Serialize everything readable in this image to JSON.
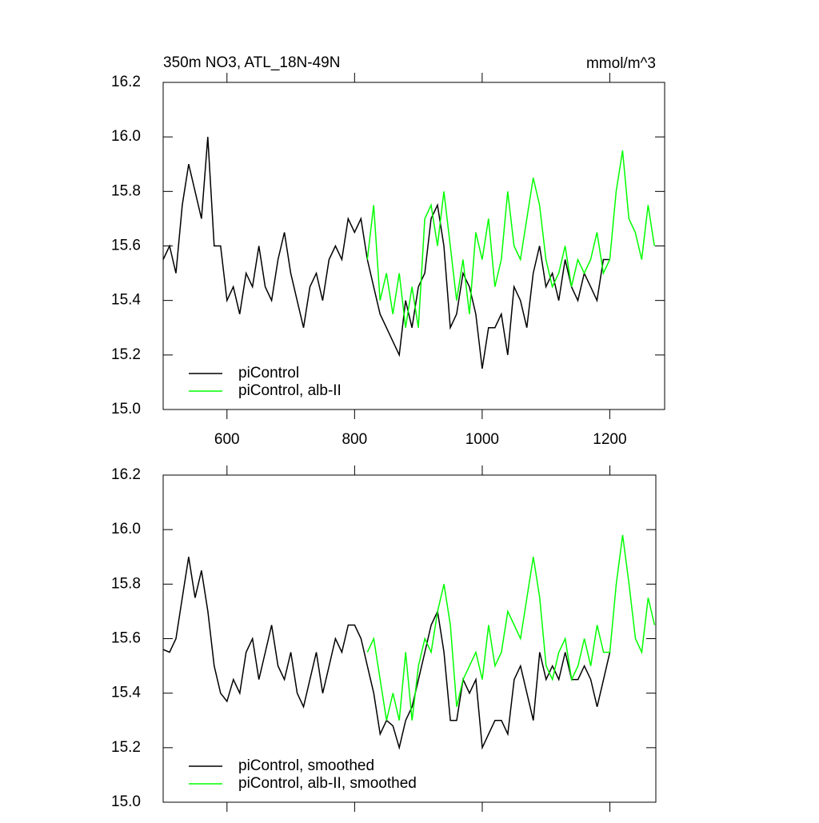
{
  "chart_data": [
    {
      "type": "line",
      "title": "350m NO3, ATL_18N-49N",
      "y_units": "mmol/m^3",
      "xlim": [
        500,
        1286
      ],
      "ylim": [
        15.0,
        16.2
      ],
      "xticks": [
        600,
        800,
        1000,
        1200
      ],
      "yticks": [
        {
          "value": 15.0,
          "label": "15.0"
        },
        {
          "value": 15.2,
          "label": "15.2"
        },
        {
          "value": 15.4,
          "label": "15.4"
        },
        {
          "value": 15.6,
          "label": "15.6"
        },
        {
          "value": 15.8,
          "label": "15.8"
        },
        {
          "value": 16.0,
          "label": "16.0"
        },
        {
          "value": 16.2,
          "label": "16.2"
        }
      ],
      "legend": "lower-left",
      "series": [
        {
          "name": "piControl",
          "color": "#000000",
          "x": [
            500,
            510,
            520,
            530,
            540,
            550,
            560,
            570,
            580,
            590,
            600,
            610,
            620,
            630,
            640,
            650,
            660,
            670,
            680,
            690,
            700,
            710,
            720,
            730,
            740,
            750,
            760,
            770,
            780,
            790,
            800,
            810,
            820,
            830,
            840,
            850,
            860,
            870,
            880,
            890,
            900,
            910,
            920,
            930,
            940,
            950,
            960,
            970,
            980,
            990,
            1000,
            1010,
            1020,
            1030,
            1040,
            1050,
            1060,
            1070,
            1080,
            1090,
            1100,
            1110,
            1120,
            1130,
            1140,
            1150,
            1160,
            1170,
            1180,
            1190,
            1200
          ],
          "values": [
            15.55,
            15.6,
            15.5,
            15.75,
            15.9,
            15.8,
            15.7,
            16.0,
            15.6,
            15.6,
            15.4,
            15.45,
            15.35,
            15.5,
            15.45,
            15.6,
            15.45,
            15.4,
            15.55,
            15.65,
            15.5,
            15.4,
            15.3,
            15.45,
            15.5,
            15.4,
            15.55,
            15.6,
            15.55,
            15.7,
            15.65,
            15.7,
            15.55,
            15.45,
            15.35,
            15.3,
            15.25,
            15.2,
            15.4,
            15.3,
            15.45,
            15.5,
            15.7,
            15.75,
            15.6,
            15.3,
            15.35,
            15.5,
            15.45,
            15.35,
            15.15,
            15.3,
            15.3,
            15.35,
            15.2,
            15.45,
            15.4,
            15.3,
            15.5,
            15.6,
            15.45,
            15.5,
            15.4,
            15.55,
            15.45,
            15.4,
            15.5,
            15.45,
            15.4,
            15.55,
            15.55
          ]
        },
        {
          "name": "piControl, alb-II",
          "color": "#00ff00",
          "x": [
            820,
            830,
            840,
            850,
            860,
            870,
            880,
            890,
            900,
            910,
            920,
            930,
            940,
            950,
            960,
            970,
            980,
            990,
            1000,
            1010,
            1020,
            1030,
            1040,
            1050,
            1060,
            1070,
            1080,
            1090,
            1100,
            1110,
            1120,
            1130,
            1140,
            1150,
            1160,
            1170,
            1180,
            1190,
            1200,
            1210,
            1220,
            1230,
            1240,
            1250,
            1260,
            1270
          ],
          "values": [
            15.55,
            15.75,
            15.4,
            15.5,
            15.35,
            15.5,
            15.3,
            15.45,
            15.3,
            15.7,
            15.75,
            15.6,
            15.8,
            15.6,
            15.4,
            15.55,
            15.35,
            15.65,
            15.55,
            15.7,
            15.45,
            15.55,
            15.8,
            15.6,
            15.55,
            15.7,
            15.85,
            15.75,
            15.55,
            15.45,
            15.5,
            15.6,
            15.45,
            15.55,
            15.5,
            15.55,
            15.65,
            15.5,
            15.55,
            15.8,
            15.95,
            15.7,
            15.65,
            15.55,
            15.75,
            15.6
          ]
        }
      ]
    },
    {
      "type": "line",
      "xlim": [
        500,
        1272
      ],
      "ylim": [
        15.0,
        16.2
      ],
      "yticks": [
        {
          "value": 15.0,
          "label": "15.0"
        },
        {
          "value": 15.2,
          "label": "15.2"
        },
        {
          "value": 15.4,
          "label": "15.4"
        },
        {
          "value": 15.6,
          "label": "15.6"
        },
        {
          "value": 15.8,
          "label": "15.8"
        },
        {
          "value": 16.0,
          "label": "16.0"
        },
        {
          "value": 16.2,
          "label": "16.2"
        }
      ],
      "legend": "lower-left",
      "series": [
        {
          "name": "piControl, smoothed",
          "color": "#000000",
          "x": [
            500,
            510,
            520,
            530,
            540,
            550,
            560,
            570,
            580,
            590,
            600,
            610,
            620,
            630,
            640,
            650,
            660,
            670,
            680,
            690,
            700,
            710,
            720,
            730,
            740,
            750,
            760,
            770,
            780,
            790,
            800,
            810,
            820,
            830,
            840,
            850,
            860,
            870,
            880,
            890,
            900,
            910,
            920,
            930,
            940,
            950,
            960,
            970,
            980,
            990,
            1000,
            1010,
            1020,
            1030,
            1040,
            1050,
            1060,
            1070,
            1080,
            1090,
            1100,
            1110,
            1120,
            1130,
            1140,
            1150,
            1160,
            1170,
            1180,
            1190,
            1200
          ],
          "values": [
            15.56,
            15.55,
            15.6,
            15.75,
            15.9,
            15.75,
            15.85,
            15.7,
            15.5,
            15.4,
            15.37,
            15.45,
            15.4,
            15.55,
            15.6,
            15.45,
            15.55,
            15.65,
            15.5,
            15.45,
            15.55,
            15.4,
            15.35,
            15.45,
            15.55,
            15.4,
            15.5,
            15.6,
            15.55,
            15.65,
            15.65,
            15.6,
            15.5,
            15.4,
            15.25,
            15.3,
            15.28,
            15.2,
            15.3,
            15.35,
            15.45,
            15.55,
            15.65,
            15.7,
            15.55,
            15.3,
            15.3,
            15.45,
            15.4,
            15.45,
            15.2,
            15.25,
            15.3,
            15.3,
            15.25,
            15.45,
            15.5,
            15.4,
            15.3,
            15.55,
            15.45,
            15.5,
            15.45,
            15.55,
            15.45,
            15.45,
            15.5,
            15.45,
            15.35,
            15.45,
            15.55
          ]
        },
        {
          "name": "piControl, alb-II, smoothed",
          "color": "#00ff00",
          "x": [
            820,
            830,
            840,
            850,
            860,
            870,
            880,
            890,
            900,
            910,
            920,
            930,
            940,
            950,
            960,
            970,
            980,
            990,
            1000,
            1010,
            1020,
            1030,
            1040,
            1050,
            1060,
            1070,
            1080,
            1090,
            1100,
            1110,
            1120,
            1130,
            1140,
            1150,
            1160,
            1170,
            1180,
            1190,
            1200,
            1210,
            1220,
            1230,
            1240,
            1250,
            1260,
            1270
          ],
          "values": [
            15.55,
            15.6,
            15.45,
            15.3,
            15.4,
            15.3,
            15.55,
            15.3,
            15.5,
            15.6,
            15.55,
            15.7,
            15.8,
            15.65,
            15.35,
            15.45,
            15.5,
            15.55,
            15.45,
            15.65,
            15.5,
            15.55,
            15.7,
            15.65,
            15.6,
            15.75,
            15.9,
            15.75,
            15.5,
            15.45,
            15.55,
            15.6,
            15.45,
            15.5,
            15.6,
            15.5,
            15.65,
            15.55,
            15.55,
            15.8,
            15.98,
            15.8,
            15.6,
            15.55,
            15.75,
            15.65
          ]
        }
      ]
    }
  ]
}
